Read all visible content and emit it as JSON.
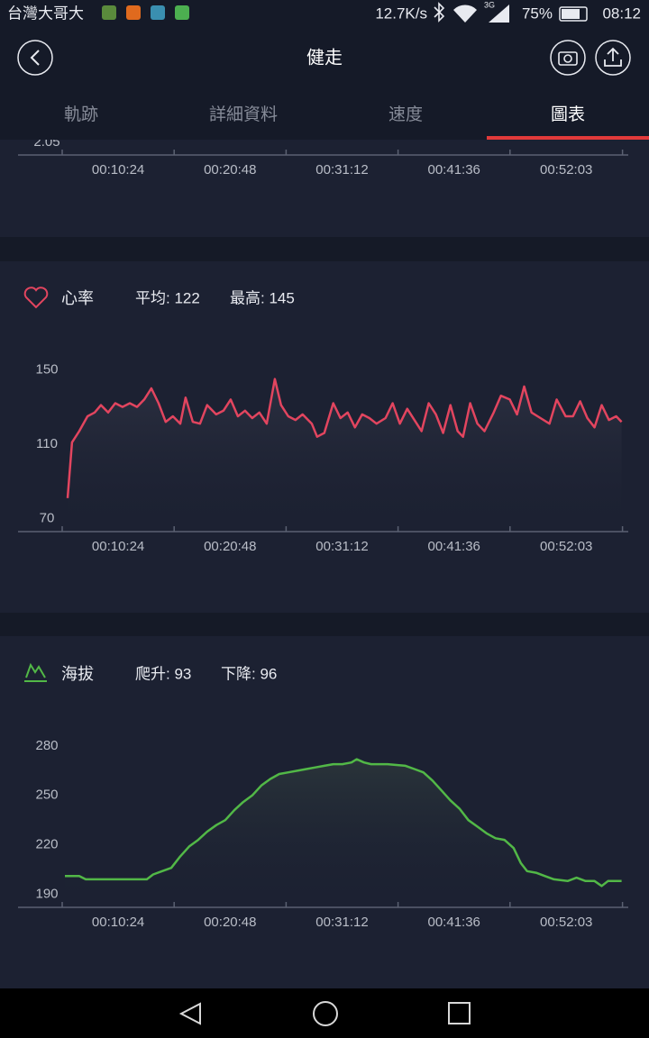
{
  "status_bar": {
    "carrier": "台灣大哥大",
    "speed": "12.7K/s",
    "network": "3G",
    "battery": "75%",
    "time": "08:12"
  },
  "header": {
    "title": "健走"
  },
  "tabs": [
    "軌跡",
    "詳細資料",
    "速度",
    "圖表"
  ],
  "active_tab": 3,
  "chart_data": [
    {
      "type": "line",
      "yticks": [
        2.05
      ],
      "xlim": [
        0,
        3125
      ],
      "xticks": [
        {
          "value": 624,
          "label": "00:10:24"
        },
        {
          "value": 1248,
          "label": "00:20:48"
        },
        {
          "value": 1872,
          "label": "00:31:12"
        },
        {
          "value": 2496,
          "label": "00:41:36"
        },
        {
          "value": 3123,
          "label": "00:52:03"
        }
      ]
    },
    {
      "type": "line",
      "title": "心率",
      "stats": [
        "平均: 122",
        "最高: 145"
      ],
      "color": "#e2455f",
      "ylim": [
        63,
        155
      ],
      "yticks": [
        70,
        110,
        150
      ],
      "xlim": [
        0,
        3125
      ],
      "xticks": [
        {
          "value": 624,
          "label": "00:10:24"
        },
        {
          "value": 1248,
          "label": "00:20:48"
        },
        {
          "value": 1872,
          "label": "00:31:12"
        },
        {
          "value": 2496,
          "label": "00:41:36"
        },
        {
          "value": 3123,
          "label": "00:52:03"
        }
      ],
      "x": [
        30,
        55,
        95,
        141,
        181,
        216,
        256,
        296,
        336,
        377,
        417,
        457,
        497,
        537,
        577,
        617,
        658,
        688,
        728,
        768,
        808,
        858,
        899,
        939,
        979,
        1019,
        1059,
        1099,
        1140,
        1185,
        1220,
        1260,
        1300,
        1340,
        1391,
        1421,
        1461,
        1511,
        1551,
        1591,
        1632,
        1672,
        1712,
        1752,
        1802,
        1842,
        1882,
        1923,
        1963,
        2003,
        2043,
        2083,
        2123,
        2164,
        2204,
        2234,
        2274,
        2314,
        2354,
        2405,
        2445,
        2495,
        2535,
        2575,
        2616,
        2666,
        2716,
        2756,
        2806,
        2847,
        2887,
        2927,
        2967,
        3007,
        3047,
        3088,
        3118
      ],
      "values": [
        81,
        111,
        117,
        125,
        127,
        131,
        127,
        132,
        130,
        132,
        130,
        134,
        140,
        132,
        122,
        125,
        121,
        135,
        122,
        121,
        131,
        126,
        128,
        134,
        125,
        128,
        124,
        127,
        121,
        145,
        131,
        125,
        123,
        126,
        121,
        114,
        116,
        132,
        124,
        127,
        119,
        126,
        124,
        121,
        124,
        132,
        121,
        129,
        123,
        117,
        132,
        126,
        116,
        131,
        117,
        114,
        132,
        121,
        117,
        127,
        136,
        134,
        126,
        141,
        127,
        124,
        121,
        134,
        125,
        125,
        133,
        124,
        119,
        131,
        123,
        125,
        122
      ]
    },
    {
      "type": "line",
      "title": "海拔",
      "stats": [
        "爬升: 93",
        "下降: 96"
      ],
      "color": "#52b847",
      "ylim": [
        182,
        286
      ],
      "yticks": [
        190,
        220,
        250,
        280
      ],
      "xlim": [
        0,
        3125
      ],
      "xticks": [
        {
          "value": 624,
          "label": "00:10:24"
        },
        {
          "value": 1248,
          "label": "00:20:48"
        },
        {
          "value": 1872,
          "label": "00:31:12"
        },
        {
          "value": 2496,
          "label": "00:41:36"
        },
        {
          "value": 3123,
          "label": "00:52:03"
        }
      ],
      "x": [
        15,
        95,
        131,
        256,
        356,
        472,
        507,
        557,
        608,
        658,
        708,
        758,
        808,
        859,
        909,
        959,
        1009,
        1059,
        1110,
        1160,
        1210,
        1260,
        1310,
        1361,
        1411,
        1461,
        1511,
        1562,
        1612,
        1642,
        1682,
        1722,
        1813,
        1913,
        1963,
        2013,
        2064,
        2114,
        2164,
        2214,
        2264,
        2315,
        2365,
        2415,
        2465,
        2516,
        2556,
        2591,
        2641,
        2691,
        2741,
        2817,
        2867,
        2917,
        2967,
        3007,
        3042,
        3118
      ],
      "values": [
        201,
        201,
        199,
        199,
        199,
        199,
        202,
        204,
        206,
        213,
        219,
        223,
        228,
        232,
        235,
        241,
        246,
        250,
        256,
        260,
        263,
        264,
        265,
        266,
        267,
        268,
        269,
        269,
        270,
        272,
        270,
        269,
        269,
        268,
        266,
        264,
        259,
        253,
        247,
        242,
        235,
        231,
        227,
        224,
        223,
        218,
        209,
        204,
        203,
        201,
        199,
        198,
        200,
        198,
        198,
        195,
        198,
        198
      ]
    }
  ]
}
